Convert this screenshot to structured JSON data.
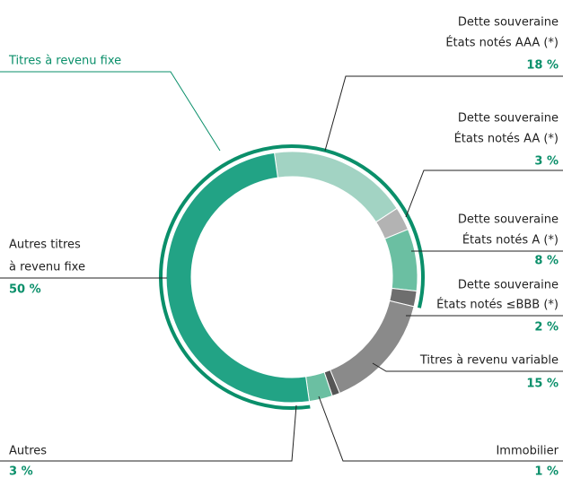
{
  "chart_data": {
    "type": "donut",
    "group_label": "Titres à revenu fixe",
    "categories": [
      [
        "Dette souveraine",
        "États notés AAA (*)"
      ],
      [
        "Dette souveraine",
        "États notés AA (*)"
      ],
      [
        "Dette souveraine",
        "États notés A (*)"
      ],
      [
        "Dette souveraine",
        "États notés ≤BBB (*)"
      ],
      [
        "Titres à revenu variable"
      ],
      [
        "Immobilier"
      ],
      [
        "Autres"
      ],
      [
        "Autres titres",
        "à revenu fixe"
      ]
    ],
    "values": [
      18,
      3,
      8,
      2,
      15,
      1,
      3,
      50
    ],
    "value_labels": [
      "18 %",
      "3 %",
      "8 %",
      "2 %",
      "15 %",
      "1 %",
      "3 %",
      "50 %"
    ],
    "colors": [
      "#a2d3c3",
      "#b3b3b3",
      "#6bbfa2",
      "#6e6e6e",
      "#8a8a8a",
      "#555555",
      "#6bbfa2",
      "#22a385"
    ],
    "group_color": "#0a8f6a"
  }
}
